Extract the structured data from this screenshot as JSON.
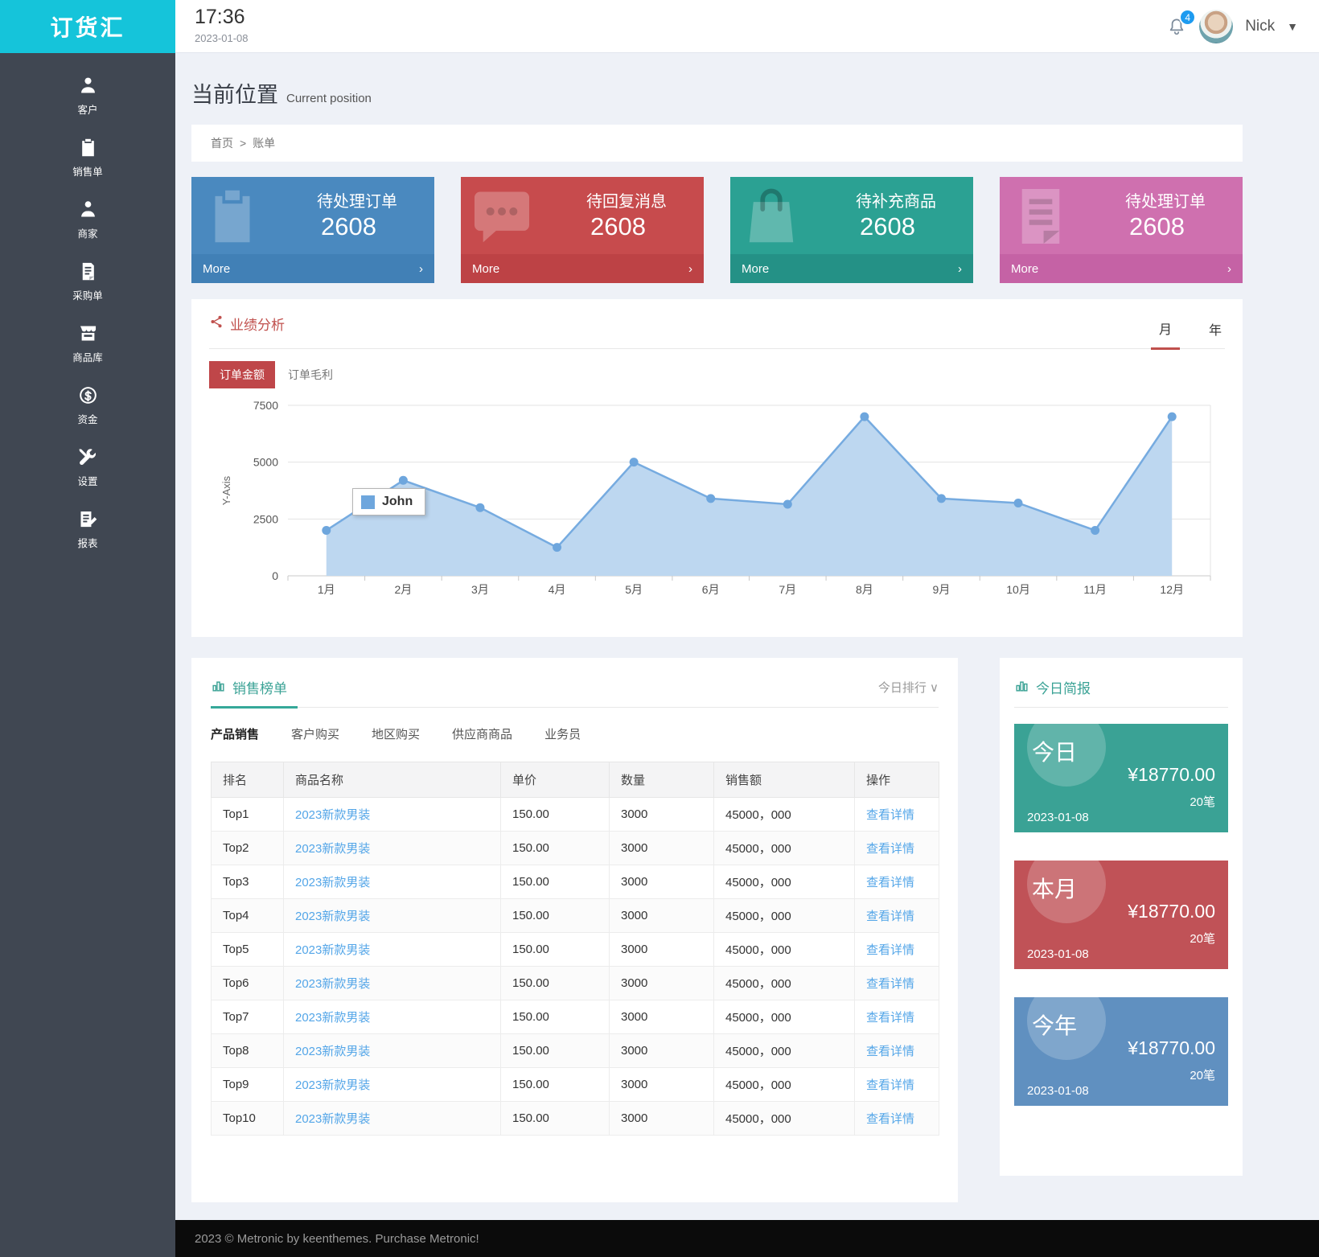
{
  "app": {
    "logo": "订货汇",
    "time": "17:36",
    "date": "2023-01-08",
    "notification_count": "4",
    "user_name": "Nick"
  },
  "sidebar": {
    "items": [
      {
        "icon": "user-icon",
        "label": "客户"
      },
      {
        "icon": "sales-order-icon",
        "label": "销售单"
      },
      {
        "icon": "merchant-icon",
        "label": "商家"
      },
      {
        "icon": "purchase-order-icon",
        "label": "采购单"
      },
      {
        "icon": "product-library-icon",
        "label": "商品库"
      },
      {
        "icon": "funds-icon",
        "label": "资金"
      },
      {
        "icon": "settings-icon",
        "label": "设置"
      },
      {
        "icon": "report-icon",
        "label": "报表"
      }
    ]
  },
  "page": {
    "title": "当前位置",
    "subtitle": "Current position",
    "breadcrumb": {
      "home": "首页",
      "separator": ">",
      "current": "账单"
    },
    "footer": "2023 © Metronic by keenthemes. Purchase Metronic!"
  },
  "stat_cards": [
    {
      "title": "待处理订单",
      "value": "2608",
      "more": "More",
      "chevron": "›",
      "icon": "clipboard-icon",
      "color": "#4a89bf",
      "color_dark": "#4180b6"
    },
    {
      "title": "待回复消息",
      "value": "2608",
      "more": "More",
      "chevron": "›",
      "icon": "chat-icon",
      "color": "#c74b4d",
      "color_dark": "#bd4245"
    },
    {
      "title": "待补充商品",
      "value": "2608",
      "more": "More",
      "chevron": "›",
      "icon": "bag-icon",
      "color": "#2ba193",
      "color_dark": "#249186"
    },
    {
      "title": "待处理订单",
      "value": "2608",
      "more": "More",
      "chevron": "›",
      "icon": "document-icon",
      "color": "#cf70af",
      "color_dark": "#c562a5"
    }
  ],
  "performance": {
    "title": "业绩分析",
    "period_month": "月",
    "period_year": "年",
    "tab_amount": "订单金额",
    "tab_profit": "订单毛利",
    "accent": "#c0504d"
  },
  "chart_data": {
    "type": "area",
    "x": [
      "1月",
      "2月",
      "3月",
      "4月",
      "5月",
      "6月",
      "7月",
      "8月",
      "9月",
      "10月",
      "11月",
      "12月"
    ],
    "series": [
      {
        "name": "John",
        "values": [
          2000,
          4200,
          3000,
          1250,
          5000,
          3400,
          3150,
          7000,
          3400,
          3200,
          2000,
          7000
        ]
      }
    ],
    "title": "",
    "xlabel": "",
    "ylabel": "Y-Axis",
    "yticks": [
      0,
      2500,
      5000,
      7500
    ],
    "ylim": [
      0,
      7500
    ],
    "grid": true,
    "legend_tooltip": "John",
    "colors": {
      "line": "#76abe0",
      "fill": "#bdd7f0",
      "dot": "#6ea6dd"
    }
  },
  "sales": {
    "title": "销售榜单",
    "sort_label": "今日排行",
    "sort_chevron": "∨",
    "tabs": [
      {
        "label": "产品销售",
        "active": true
      },
      {
        "label": "客户购买",
        "active": false
      },
      {
        "label": "地区购买",
        "active": false
      },
      {
        "label": "供应商商品",
        "active": false
      },
      {
        "label": "业务员",
        "active": false
      }
    ],
    "columns": [
      "排名",
      "商品名称",
      "单价",
      "数量",
      "销售额",
      "操作"
    ],
    "highlight_rank_count": 3,
    "rows": [
      {
        "rank": "Top1",
        "name": "2023新款男装",
        "price": "150.00",
        "qty": "3000",
        "amount": "45000，000",
        "action": "查看详情"
      },
      {
        "rank": "Top2",
        "name": "2023新款男装",
        "price": "150.00",
        "qty": "3000",
        "amount": "45000，000",
        "action": "查看详情"
      },
      {
        "rank": "Top3",
        "name": "2023新款男装",
        "price": "150.00",
        "qty": "3000",
        "amount": "45000，000",
        "action": "查看详情"
      },
      {
        "rank": "Top4",
        "name": "2023新款男装",
        "price": "150.00",
        "qty": "3000",
        "amount": "45000，000",
        "action": "查看详情"
      },
      {
        "rank": "Top5",
        "name": "2023新款男装",
        "price": "150.00",
        "qty": "3000",
        "amount": "45000，000",
        "action": "查看详情"
      },
      {
        "rank": "Top6",
        "name": "2023新款男装",
        "price": "150.00",
        "qty": "3000",
        "amount": "45000，000",
        "action": "查看详情"
      },
      {
        "rank": "Top7",
        "name": "2023新款男装",
        "price": "150.00",
        "qty": "3000",
        "amount": "45000，000",
        "action": "查看详情"
      },
      {
        "rank": "Top8",
        "name": "2023新款男装",
        "price": "150.00",
        "qty": "3000",
        "amount": "45000，000",
        "action": "查看详情"
      },
      {
        "rank": "Top9",
        "name": "2023新款男装",
        "price": "150.00",
        "qty": "3000",
        "amount": "45000，000",
        "action": "查看详情"
      },
      {
        "rank": "Top10",
        "name": "2023新款男装",
        "price": "150.00",
        "qty": "3000",
        "amount": "45000，000",
        "action": "查看详情"
      }
    ]
  },
  "brief": {
    "title": "今日简报",
    "cards": [
      {
        "label": "今日",
        "amount": "¥18770.00",
        "count": "20笔",
        "date": "2023-01-08",
        "color": "#3aa295"
      },
      {
        "label": "本月",
        "amount": "¥18770.00",
        "count": "20笔",
        "date": "2023-01-08",
        "color": "#c05257"
      },
      {
        "label": "今年",
        "amount": "¥18770.00",
        "count": "20笔",
        "date": "2023-01-08",
        "color": "#6090c0"
      }
    ]
  }
}
